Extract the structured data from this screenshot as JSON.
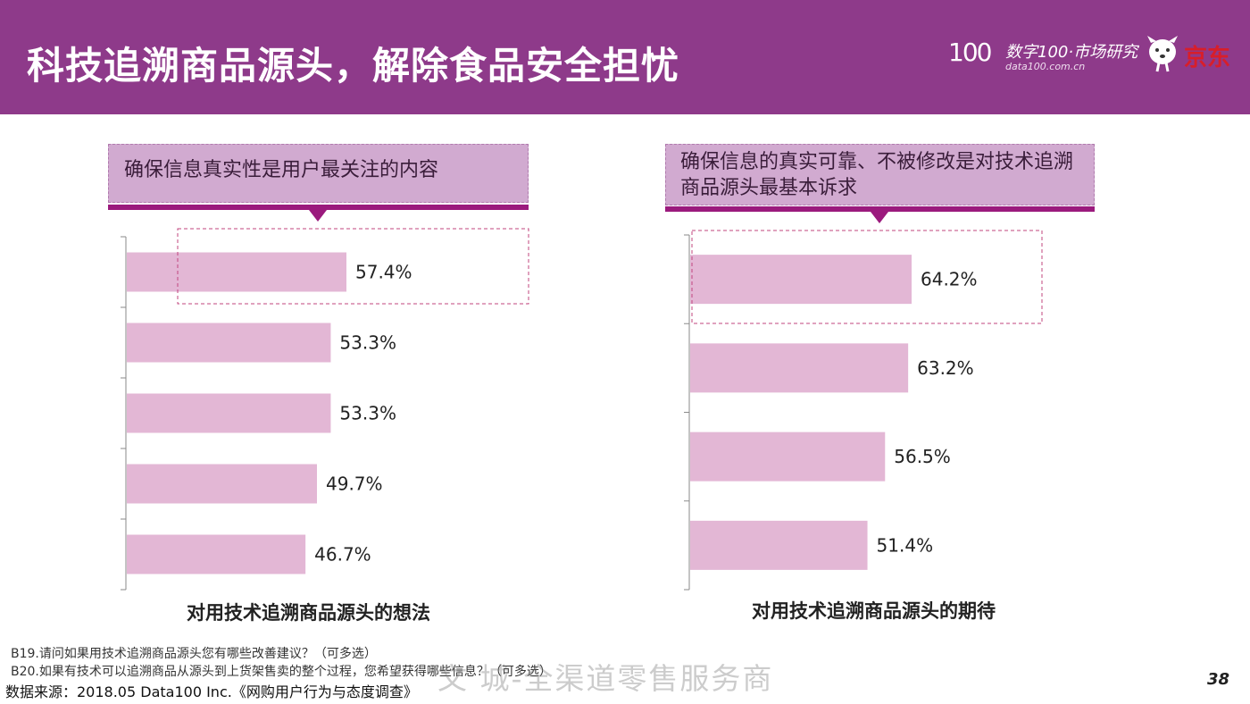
{
  "header": {
    "title": "科技追溯商品源头，解除食品安全担忧",
    "brand_mark": "100",
    "brand_name": "数字100·市场研究",
    "brand_url": "data100.com.cn",
    "partner_name": "京东",
    "bg_color": "#8e3a8a"
  },
  "colors": {
    "bar": "#e3b7d5",
    "callout_bg": "#d1aad0",
    "callout_rule": "#9b1a7d",
    "highlight_box": "#c0447e"
  },
  "chart_data": [
    {
      "type": "bar",
      "orientation": "horizontal",
      "callout": "确保信息真实性是用户最关注的内容",
      "caption": "对用技术追溯商品源头的想法",
      "categories": [
        "",
        "",
        "",
        "",
        ""
      ],
      "values": [
        57.4,
        53.3,
        53.3,
        49.7,
        46.7
      ],
      "data_labels": [
        "57.4%",
        "53.3%",
        "53.3%",
        "49.7%",
        "46.7%"
      ],
      "highlighted_index": 0,
      "unit": "%"
    },
    {
      "type": "bar",
      "orientation": "horizontal",
      "callout": "确保信息的真实可靠、不被修改是对技术追溯商品源头最基本诉求",
      "caption": "对用技术追溯商品源头的期待",
      "categories": [
        "",
        "",
        "",
        ""
      ],
      "values": [
        64.2,
        63.2,
        56.5,
        51.4
      ],
      "data_labels": [
        "64.2%",
        "63.2%",
        "56.5%",
        "51.4%"
      ],
      "highlighted_index": 0,
      "unit": "%"
    }
  ],
  "notes": [
    "B19.请问如果用技术追溯商品源头您有哪些改善建议？（可多选）",
    "B20.如果有技术可以追溯商品从源头到上货架售卖的整个过程，您希望获得哪些信息？（可多选）"
  ],
  "source": "数据来源：2018.05 Data100 Inc.《网购用户行为与态度调查》",
  "watermark": "文 城-全渠道零售服务商",
  "page_number": "38"
}
